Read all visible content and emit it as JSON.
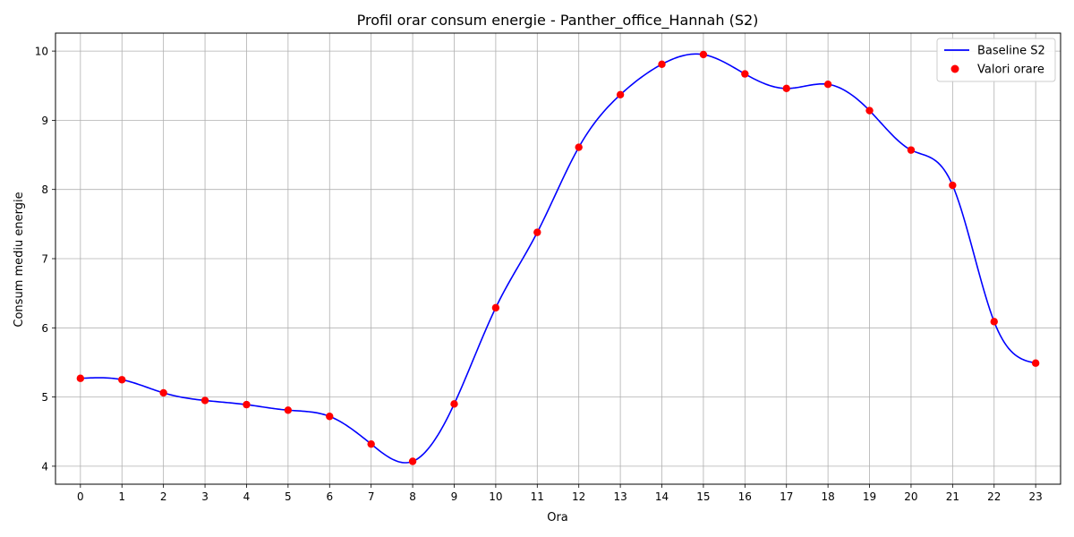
{
  "chart_data": {
    "type": "line",
    "title": "Profil orar consum energie - Panther_office_Hannah (S2)",
    "xlabel": "Ora",
    "ylabel": "Consum mediu energie",
    "x": [
      0,
      1,
      2,
      3,
      4,
      5,
      6,
      7,
      8,
      9,
      10,
      11,
      12,
      13,
      14,
      15,
      16,
      17,
      18,
      19,
      20,
      21,
      22,
      23
    ],
    "x_tick_labels": [
      "0",
      "1",
      "2",
      "3",
      "4",
      "5",
      "6",
      "7",
      "8",
      "9",
      "10",
      "11",
      "12",
      "13",
      "14",
      "15",
      "16",
      "17",
      "18",
      "19",
      "20",
      "21",
      "22",
      "23"
    ],
    "xlim": [
      -0.6,
      23.6
    ],
    "ylim": [
      3.74,
      10.26
    ],
    "y_ticks": [
      4,
      5,
      6,
      7,
      8,
      9,
      10
    ],
    "y_tick_labels": [
      "4",
      "5",
      "6",
      "7",
      "8",
      "9",
      "10"
    ],
    "grid": true,
    "legend_position": "top-right",
    "series": [
      {
        "name": "Baseline S2",
        "kind": "line",
        "color": "#0000ff",
        "values": [
          5.27,
          5.25,
          5.06,
          4.95,
          4.89,
          4.81,
          4.72,
          4.32,
          4.07,
          4.9,
          6.29,
          7.38,
          8.61,
          9.37,
          9.81,
          9.95,
          9.67,
          9.46,
          9.52,
          9.14,
          8.57,
          8.06,
          6.09,
          5.49
        ]
      },
      {
        "name": "Valori orare",
        "kind": "scatter",
        "color": "#ff0000",
        "values": [
          5.27,
          5.25,
          5.06,
          4.95,
          4.89,
          4.81,
          4.72,
          4.32,
          4.07,
          4.9,
          6.29,
          7.38,
          8.61,
          9.37,
          9.81,
          9.95,
          9.67,
          9.46,
          9.52,
          9.14,
          8.57,
          8.06,
          6.09,
          5.49
        ]
      }
    ]
  }
}
